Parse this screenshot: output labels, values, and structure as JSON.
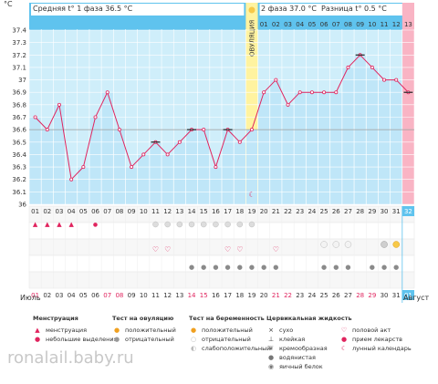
{
  "chart_data": {
    "type": "line",
    "ylabel": "°C",
    "ylim": [
      36,
      37.4
    ],
    "yticks": [
      36,
      36.1,
      36.2,
      36.3,
      36.4,
      36.5,
      36.6,
      36.7,
      36.8,
      36.9,
      37,
      37.1,
      37.2,
      37.3,
      37.4
    ],
    "coverline": 36.6,
    "days": [
      "01",
      "02",
      "03",
      "04",
      "05",
      "06",
      "07",
      "08",
      "09",
      "10",
      "11",
      "12",
      "13",
      "14",
      "15",
      "16",
      "17",
      "18",
      "19",
      "20",
      "21",
      "22",
      "23",
      "24",
      "25",
      "26",
      "27",
      "28",
      "29",
      "30",
      "31",
      "32"
    ],
    "dates": [
      "01",
      "02",
      "03",
      "04",
      "05",
      "06",
      "07",
      "08",
      "09",
      "10",
      "11",
      "12",
      "13",
      "14",
      "15",
      "16",
      "17",
      "18",
      "19",
      "20",
      "21",
      "22",
      "23",
      "24",
      "25",
      "26",
      "27",
      "28",
      "29",
      "30",
      "31",
      "01"
    ],
    "temps": [
      36.7,
      36.6,
      36.8,
      36.2,
      36.3,
      36.7,
      36.9,
      36.6,
      36.3,
      36.4,
      36.5,
      36.4,
      36.5,
      36.6,
      36.6,
      36.3,
      36.6,
      36.5,
      36.6,
      36.9,
      37.0,
      36.8,
      36.9,
      36.9,
      36.9,
      36.9,
      37.1,
      37.2,
      37.1,
      37.0,
      37.0,
      36.9
    ],
    "ovulation_day": 19,
    "ovulation_label": "ОВУЛЯЦИЯ",
    "phase2_days": [
      "01",
      "02",
      "03",
      "04",
      "05",
      "06",
      "07",
      "08",
      "09",
      "10",
      "11",
      "12",
      "13"
    ],
    "marked_points": [
      11,
      14,
      17,
      28,
      32
    ]
  },
  "header": {
    "phase1": "Средняя t° 1 фаза 36.5 °C",
    "phase2": "2 фаза 37.0 °C",
    "diff": "Разница t° 0.5 °C"
  },
  "months": {
    "left": "Июль",
    "right": "Август"
  },
  "colors": {
    "line": "#e0245e",
    "bar": "#bfe6f8",
    "plot": "#cfeefa",
    "header": "#5fc3ee",
    "ovulation": "#fff3a0",
    "pink": "#f9b4c4"
  },
  "legend": {
    "menstruation": {
      "title": "Менструация",
      "items": [
        "менструация",
        "небольшие выделения"
      ]
    },
    "ovulation_test": {
      "title": "Тест на овуляцию",
      "items": [
        "положительный",
        "отрицательный"
      ]
    },
    "pregnancy_test": {
      "title": "Тест на беременность",
      "items": [
        "положительный",
        "отрицательный",
        "слабоположительный"
      ]
    },
    "cervical": {
      "title": "Цервикальная жидкость",
      "items": [
        "сухо",
        "клейкая",
        "кремообразная",
        "водянистая",
        "яичный белок"
      ]
    },
    "other": {
      "items": [
        "половой акт",
        "прием лекарств",
        "лунный календарь"
      ]
    }
  },
  "watermark": "ronalail.baby.ru"
}
